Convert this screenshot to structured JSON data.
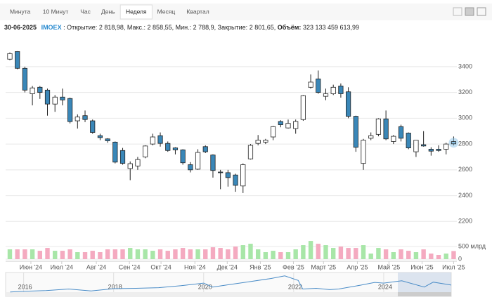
{
  "tabs": [
    "Минута",
    "10 Минут",
    "Час",
    "День",
    "Неделя",
    "Месяц",
    "Квартал"
  ],
  "active_tab": 4,
  "info": {
    "date": "30-06-2025",
    "ticker": "IMOEX",
    "items": [
      {
        "label": ": Открытие:",
        "value": "2 818,98,"
      },
      {
        "label": "Макс.:",
        "value": "2 858,55,"
      },
      {
        "label": "Мин.:",
        "value": "2 788,9,"
      },
      {
        "label": "Закрытие:",
        "value": "2 801,65,"
      },
      {
        "label": "Объём:",
        "value": "323 133 459 613,99"
      }
    ]
  },
  "chart_data": [
    {
      "type": "candlestick",
      "categories": [
        null,
        null,
        null,
        null,
        null,
        null,
        null,
        null,
        null,
        null,
        null,
        null,
        null,
        null,
        null,
        null,
        null,
        null,
        null,
        null,
        null,
        null,
        null,
        null,
        null,
        null,
        null,
        null,
        null,
        null,
        null,
        null,
        null,
        null,
        null,
        null,
        null,
        null,
        null,
        null,
        null,
        null,
        null,
        null,
        null,
        null,
        null,
        null,
        null,
        null,
        null,
        null,
        null,
        null,
        null,
        null,
        null,
        null,
        null,
        null
      ],
      "open": [
        3458,
        3517,
        3387,
        3190,
        3240,
        3218,
        3110,
        3164,
        3153,
        2980,
        3020,
        2980,
        2865,
        2840,
        2815,
        2750,
        2610,
        2630,
        2700,
        2800,
        2865,
        2805,
        2770,
        2755,
        2640,
        2605,
        2780,
        2715,
        2583,
        2578,
        2560,
        2475,
        2685,
        2805,
        2815,
        2855,
        2975,
        2925,
        2920,
        2990,
        3240,
        3305,
        3170,
        3190,
        3250,
        3205,
        3015,
        2650,
        2845,
        2875,
        2995,
        2820,
        2935,
        2885,
        2740,
        2795,
        2760,
        2760,
        2760,
        2818.98
      ],
      "high": [
        3510,
        3520,
        3400,
        3250,
        3250,
        3230,
        3180,
        3230,
        3160,
        3030,
        3060,
        2990,
        2880,
        2845,
        2820,
        2770,
        2665,
        2700,
        2790,
        2880,
        2890,
        2820,
        2775,
        2760,
        2660,
        2760,
        2790,
        2720,
        2600,
        2600,
        2570,
        2650,
        2800,
        2870,
        2840,
        2940,
        2985,
        2990,
        2990,
        3180,
        3340,
        3370,
        3230,
        3260,
        3270,
        3240,
        3020,
        2840,
        2890,
        3000,
        3060,
        2870,
        2950,
        2890,
        2830,
        2900,
        2775,
        2790,
        2810,
        2858.55
      ],
      "low": [
        3450,
        3380,
        3200,
        3100,
        3150,
        3020,
        3050,
        3100,
        2960,
        2920,
        2970,
        2880,
        2830,
        2810,
        2650,
        2640,
        2520,
        2600,
        2690,
        2790,
        2780,
        2740,
        2720,
        2640,
        2580,
        2600,
        2730,
        2540,
        2450,
        2470,
        2430,
        2420,
        2680,
        2790,
        2800,
        2830,
        2930,
        2920,
        2880,
        2980,
        3230,
        3190,
        3140,
        3180,
        3160,
        3000,
        2740,
        2600,
        2830,
        2860,
        2830,
        2800,
        2820,
        2760,
        2700,
        2780,
        2710,
        2740,
        2720,
        2788.9
      ],
      "close": [
        3501,
        3387,
        3218,
        3235,
        3200,
        3110,
        3164,
        3142,
        2974,
        3010,
        2990,
        2890,
        2850,
        2825,
        2660,
        2650,
        2648,
        2680,
        2785,
        2855,
        2805,
        2750,
        2755,
        2655,
        2600,
        2735,
        2740,
        2595,
        2578,
        2540,
        2480,
        2640,
        2790,
        2830,
        2830,
        2935,
        2950,
        2960,
        2975,
        3175,
        3280,
        3200,
        3190,
        3240,
        3190,
        3015,
        2775,
        2830,
        2865,
        2995,
        2840,
        2860,
        2845,
        2770,
        2830,
        2785,
        2745,
        2750,
        2800,
        2801.65
      ],
      "up_color": "#ffffff",
      "down_color": "#3a87b8",
      "highlight_color": "#8cc4e8",
      "xlim": [
        -0.56,
        59.8
      ],
      "xticks": [
        {
          "value": 2.8,
          "label": "Июн '24"
        },
        {
          "value": 6.9,
          "label": "Июл '24"
        },
        {
          "value": 11.5,
          "label": "Авг '24"
        },
        {
          "value": 15.9,
          "label": "Сен '24"
        },
        {
          "value": 20.1,
          "label": "Окт '24"
        },
        {
          "value": 24.6,
          "label": "Ноя '24"
        },
        {
          "value": 28.9,
          "label": "Дек '24"
        },
        {
          "value": 33.3,
          "label": "Янв '25"
        },
        {
          "value": 37.7,
          "label": "Фев '25"
        },
        {
          "value": 41.7,
          "label": "Март '25"
        },
        {
          "value": 46.2,
          "label": "Апр '25"
        },
        {
          "value": 50.4,
          "label": "Май '25"
        },
        {
          "value": 54.8,
          "label": "Июн '25"
        },
        {
          "value": 59.0,
          "label": "Июл '25"
        }
      ],
      "ylim": [
        2120,
        3590
      ],
      "yticks": [
        2200,
        2400,
        2600,
        2800,
        3000,
        3200,
        3400
      ],
      "grid": true
    },
    {
      "type": "volume",
      "values": [
        389,
        389,
        389,
        389,
        333,
        444,
        333,
        333,
        389,
        278,
        278,
        333,
        278,
        389,
        389,
        389,
        444,
        389,
        389,
        333,
        389,
        333,
        389,
        444,
        389,
        389,
        389,
        472,
        444,
        389,
        500,
        556,
        611,
        389,
        278,
        333,
        278,
        278,
        389,
        556,
        722,
        611,
        556,
        444,
        500,
        444,
        444,
        556,
        222,
        444,
        389,
        278,
        389,
        333,
        278,
        389,
        222,
        167,
        222,
        323.13
      ],
      "up_color": "#a8e6a8",
      "down_color": "#f4aac0",
      "ylim": [
        0,
        780
      ],
      "yticks": [
        0,
        {
          "value": 500,
          "label": "500 млрд"
        }
      ]
    },
    {
      "type": "navigator",
      "x": [
        2015.7,
        2016.0,
        2016.5,
        2017.0,
        2017.5,
        2018.0,
        2018.5,
        2019.0,
        2019.5,
        2020.0,
        2020.2,
        2020.5,
        2021.0,
        2021.5,
        2021.8,
        2022.1,
        2022.2,
        2022.5,
        2022.8,
        2023.0,
        2023.5,
        2023.8,
        2024.0,
        2024.4,
        2024.9,
        2025.1,
        2025.5
      ],
      "values": [
        1750,
        1850,
        1950,
        2200,
        1900,
        2250,
        2300,
        2400,
        2700,
        3100,
        2500,
        2800,
        3300,
        3800,
        4200,
        3500,
        2200,
        2300,
        2100,
        2200,
        2800,
        3200,
        3100,
        3450,
        2500,
        3250,
        2800
      ],
      "color": "#4a8cc7",
      "xlim": [
        2015.6,
        2025.5
      ],
      "ylim": [
        1500,
        4500
      ],
      "xticks": [
        2016,
        2018,
        2020,
        2022,
        2024
      ]
    }
  ]
}
